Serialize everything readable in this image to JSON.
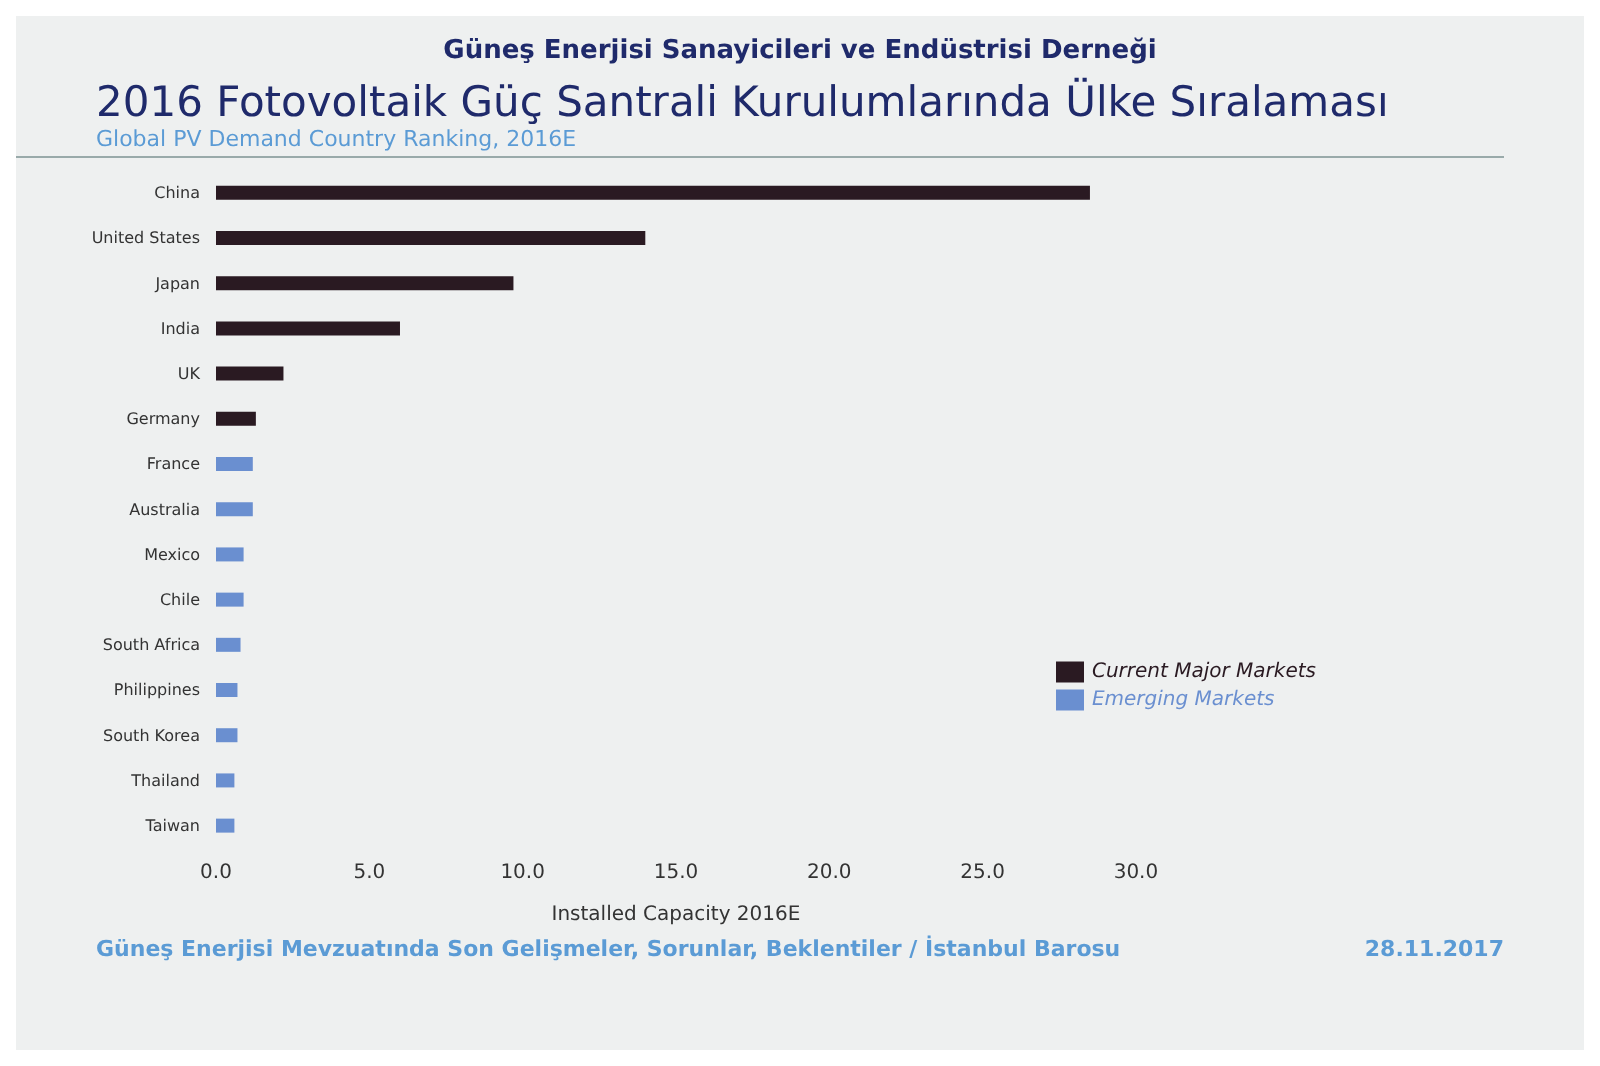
{
  "chart_data": {
    "type": "bar",
    "orientation": "horizontal",
    "stacked": true,
    "title": "2016 Fotovoltaik Güç Santrali Kurulumlarında Ülke Sıralaması",
    "subtitle": "Global PV Demand Country Ranking, 2016E",
    "xlabel": "Installed Capacity 2016E",
    "annotations": [
      "Güneş Enerjisi Sanayicileri ve Endüstrisi Derneği",
      "Güneş Enerjisi Mevzuatında Son Gelişmeler, Sorunlar, Beklentiler / İstanbul Barosu",
      "28.11.2017"
    ],
    "categories": [
      "China",
      "United States",
      "Japan",
      "India",
      "UK",
      "Germany",
      "France",
      "Australia",
      "Mexico",
      "Chile",
      "South Africa",
      "Philippines",
      "South Korea",
      "Thailand",
      "Taiwan"
    ],
    "series": [
      {
        "name": "Current Major Markets",
        "color": "#2a1a22",
        "values": [
          28.5,
          14,
          9.7,
          6.0,
          2.2,
          1.3,
          null,
          null,
          null,
          null,
          null,
          null,
          null,
          null,
          null
        ]
      },
      {
        "name": "Emerging Markets",
        "color": "#6a8fd0",
        "values": [
          null,
          null,
          null,
          null,
          null,
          null,
          1.2,
          1.2,
          0.9,
          0.9,
          0.8,
          0.7,
          0.7,
          0.6,
          0.6
        ]
      }
    ],
    "xlim": [
      0,
      30
    ],
    "xticks": [
      {
        "value": 0,
        "label": "0.0"
      },
      {
        "value": 5,
        "label": "5.0"
      },
      {
        "value": 10,
        "label": "10.0"
      },
      {
        "value": 15,
        "label": "15.0"
      },
      {
        "value": 20,
        "label": "20.0"
      },
      {
        "value": 25,
        "label": "25.0"
      },
      {
        "value": 30,
        "label": "30.0"
      }
    ],
    "grid": false,
    "legend": "right"
  }
}
